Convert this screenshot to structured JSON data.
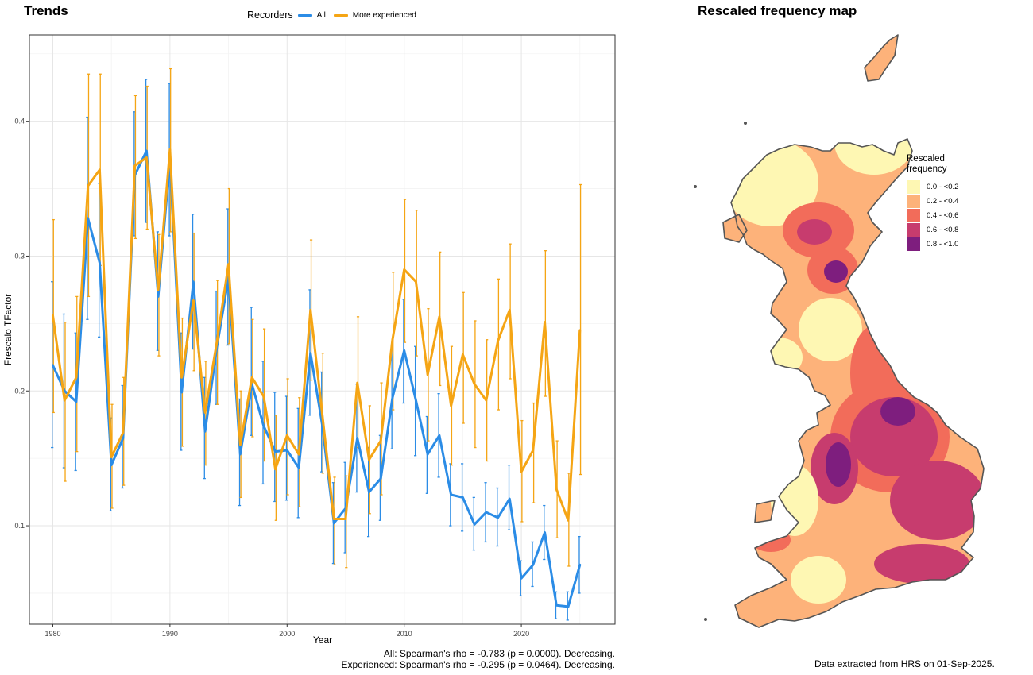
{
  "trends_title": "Trends",
  "map_title": "Rescaled frequency map",
  "legend": {
    "title": "Recorders",
    "items": [
      {
        "label": "All",
        "color": "#2b8ce6"
      },
      {
        "label": "More experienced",
        "color": "#f5a514"
      }
    ]
  },
  "stats": {
    "all": "All: Spearman's rho = -0.783 (p = 0.0000). Decreasing.",
    "experienced": "Experienced: Spearman's rho = -0.295 (p = 0.0464). Decreasing."
  },
  "extract_note": "Data extracted from HRS on 01-Sep-2025.",
  "map_legend": {
    "title": "Rescaled frequency",
    "bins": [
      {
        "label": "0.0 - <0.2",
        "color": "#fef7b3"
      },
      {
        "label": "0.2 - <0.4",
        "color": "#fdb27a"
      },
      {
        "label": "0.4 - <0.6",
        "color": "#f26c5a"
      },
      {
        "label": "0.6 - <0.8",
        "color": "#c73c6e"
      },
      {
        "label": "0.8 - <1.0",
        "color": "#7e1e7e"
      }
    ]
  },
  "chart_data": {
    "type": "line",
    "title": "",
    "xlabel": "Year",
    "ylabel": "Frescalo TFactor",
    "xlim": [
      1978,
      2028
    ],
    "ylim": [
      0.027,
      0.464
    ],
    "xticks": [
      1980,
      1990,
      2000,
      2010,
      2020
    ],
    "yticks": [
      0.1,
      0.2,
      0.3,
      0.4
    ],
    "grid": true,
    "legend_position": "top",
    "x": [
      1980,
      1981,
      1982,
      1983,
      1984,
      1985,
      1986,
      1987,
      1988,
      1989,
      1990,
      1991,
      1992,
      1993,
      1994,
      1995,
      1996,
      1997,
      1998,
      1999,
      2000,
      2001,
      2002,
      2003,
      2004,
      2005,
      2006,
      2007,
      2008,
      2009,
      2010,
      2011,
      2012,
      2013,
      2014,
      2015,
      2016,
      2017,
      2018,
      2019,
      2020,
      2021,
      2022,
      2023,
      2024,
      2025
    ],
    "series": [
      {
        "name": "All",
        "color": "#2b8ce6",
        "values": [
          0.219,
          0.2,
          0.192,
          0.328,
          0.295,
          0.145,
          0.165,
          0.36,
          0.378,
          0.27,
          0.372,
          0.199,
          0.281,
          0.17,
          0.232,
          0.284,
          0.153,
          0.205,
          0.174,
          0.155,
          0.156,
          0.143,
          0.228,
          0.175,
          0.102,
          0.113,
          0.165,
          0.125,
          0.135,
          0.195,
          0.23,
          0.193,
          0.153,
          0.167,
          0.123,
          0.121,
          0.101,
          0.11,
          0.106,
          0.12,
          0.061,
          0.071,
          0.095,
          0.041,
          0.04,
          0.071
        ],
        "lower": [
          0.158,
          0.143,
          0.141,
          0.253,
          0.24,
          0.111,
          0.128,
          0.315,
          0.325,
          0.23,
          0.315,
          0.156,
          0.231,
          0.135,
          0.19,
          0.234,
          0.115,
          0.167,
          0.131,
          0.118,
          0.119,
          0.106,
          0.182,
          0.14,
          0.072,
          0.08,
          0.125,
          0.092,
          0.104,
          0.157,
          0.191,
          0.152,
          0.124,
          0.136,
          0.1,
          0.096,
          0.082,
          0.088,
          0.085,
          0.097,
          0.048,
          0.055,
          0.075,
          0.031,
          0.03,
          0.05
        ],
        "upper": [
          0.281,
          0.257,
          0.243,
          0.403,
          0.354,
          0.18,
          0.204,
          0.407,
          0.431,
          0.318,
          0.428,
          0.243,
          0.331,
          0.21,
          0.274,
          0.335,
          0.194,
          0.262,
          0.222,
          0.199,
          0.196,
          0.187,
          0.275,
          0.214,
          0.132,
          0.147,
          0.205,
          0.158,
          0.167,
          0.234,
          0.268,
          0.233,
          0.181,
          0.198,
          0.146,
          0.146,
          0.121,
          0.132,
          0.128,
          0.145,
          0.074,
          0.088,
          0.115,
          0.051,
          0.051,
          0.092
        ]
      },
      {
        "name": "More experienced",
        "color": "#f5a514",
        "values": [
          0.256,
          0.193,
          0.21,
          0.352,
          0.364,
          0.151,
          0.169,
          0.367,
          0.373,
          0.275,
          0.379,
          0.21,
          0.267,
          0.184,
          0.236,
          0.294,
          0.16,
          0.21,
          0.196,
          0.142,
          0.167,
          0.153,
          0.26,
          0.183,
          0.105,
          0.105,
          0.206,
          0.149,
          0.163,
          0.238,
          0.29,
          0.281,
          0.212,
          0.255,
          0.189,
          0.227,
          0.205,
          0.193,
          0.237,
          0.26,
          0.14,
          0.156,
          0.251,
          0.127,
          0.104,
          0.245
        ],
        "lower": [
          0.184,
          0.133,
          0.155,
          0.27,
          0.293,
          0.113,
          0.13,
          0.313,
          0.32,
          0.226,
          0.318,
          0.159,
          0.215,
          0.145,
          0.19,
          0.235,
          0.121,
          0.166,
          0.148,
          0.104,
          0.123,
          0.114,
          0.208,
          0.139,
          0.071,
          0.069,
          0.158,
          0.109,
          0.123,
          0.186,
          0.236,
          0.226,
          0.163,
          0.204,
          0.145,
          0.176,
          0.158,
          0.148,
          0.186,
          0.209,
          0.103,
          0.117,
          0.196,
          0.091,
          0.07,
          0.138
        ],
        "upper": [
          0.327,
          0.251,
          0.27,
          0.435,
          0.435,
          0.19,
          0.21,
          0.419,
          0.426,
          0.316,
          0.439,
          0.254,
          0.317,
          0.222,
          0.282,
          0.35,
          0.2,
          0.253,
          0.246,
          0.182,
          0.209,
          0.195,
          0.312,
          0.228,
          0.136,
          0.137,
          0.255,
          0.189,
          0.206,
          0.288,
          0.342,
          0.334,
          0.261,
          0.303,
          0.233,
          0.273,
          0.252,
          0.238,
          0.283,
          0.309,
          0.178,
          0.191,
          0.304,
          0.163,
          0.139,
          0.353
        ]
      }
    ]
  }
}
